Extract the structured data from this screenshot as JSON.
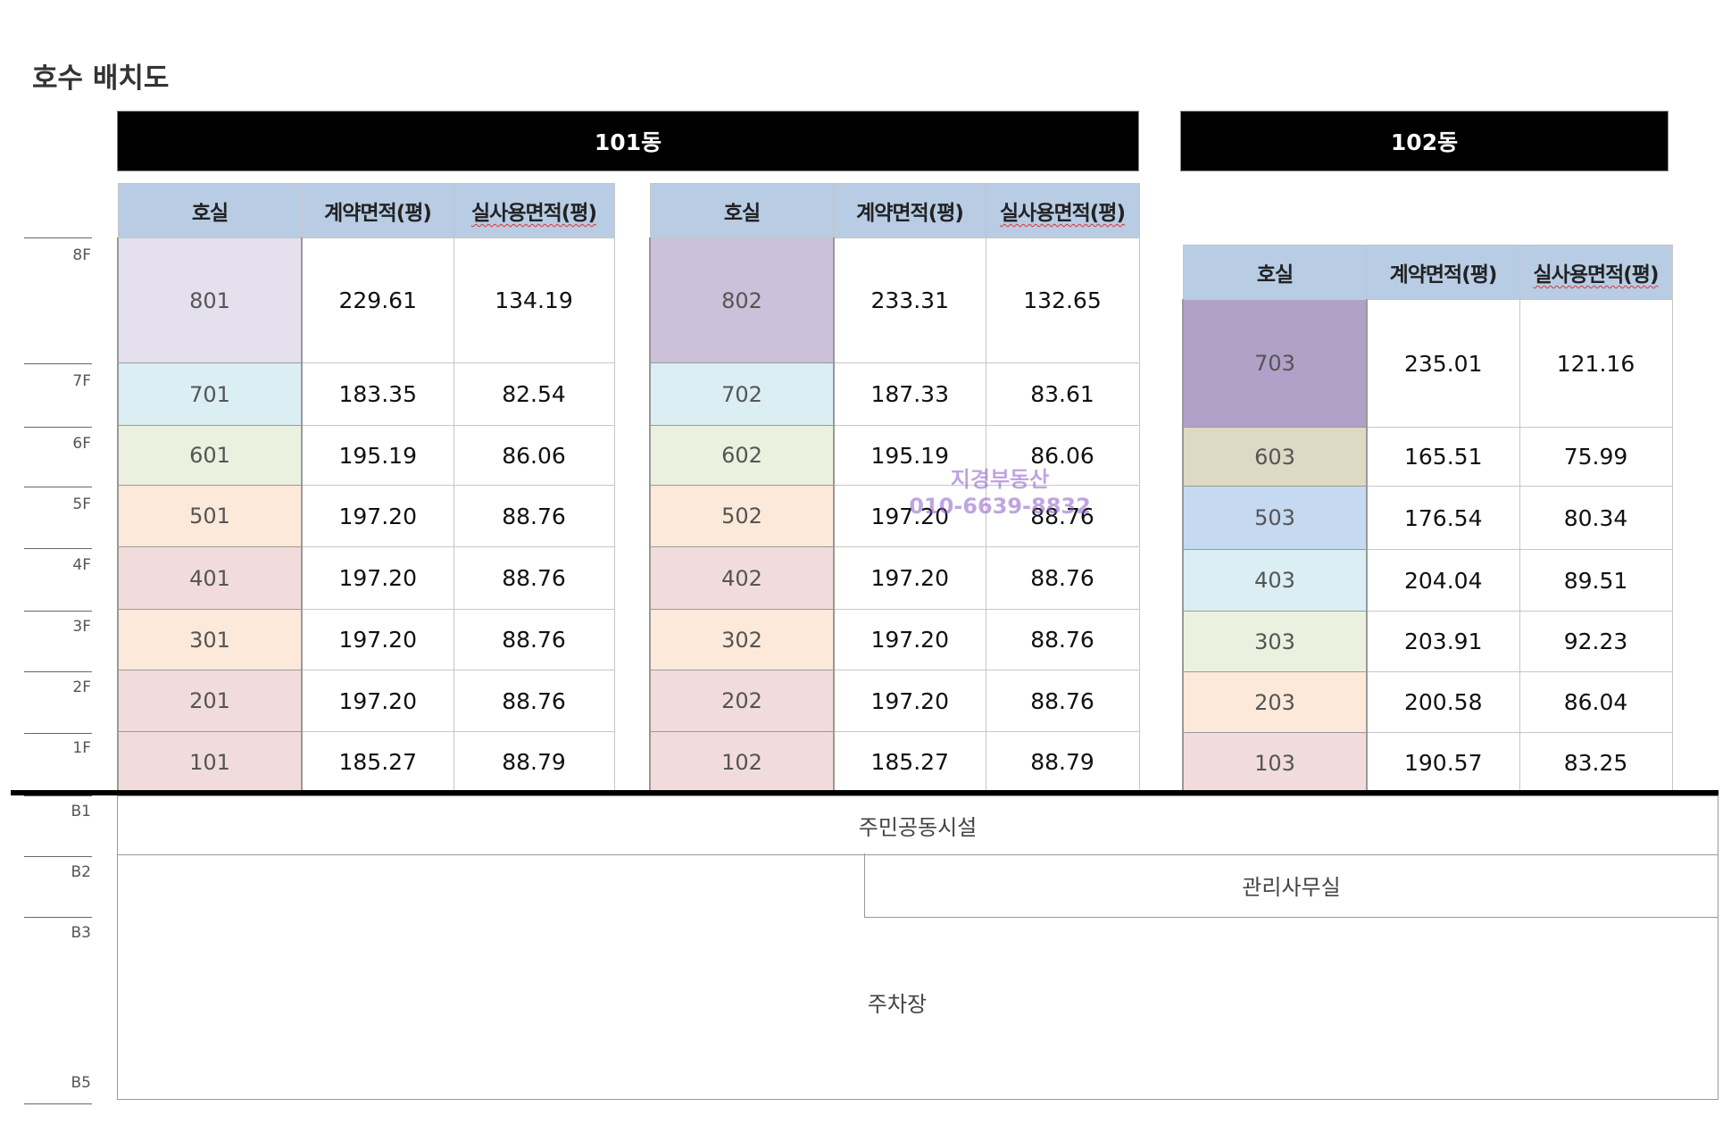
{
  "title": "호수 배치도",
  "buildings": {
    "b101": "101동",
    "b102": "102동"
  },
  "headers": {
    "unit": "호실",
    "contract_area": "계약면적(평)",
    "exclusive_area": "실사용면적(평)"
  },
  "floor_labels": [
    "8F",
    "7F",
    "6F",
    "5F",
    "4F",
    "3F",
    "2F",
    "1F",
    "B1",
    "B2",
    "B3",
    "B5"
  ],
  "colors": {
    "header_bg": "#b8cce4",
    "lavender_light": "#e4e0ee",
    "lavender_mid": "#ccc0da",
    "lavender_dark": "#b1a0c7",
    "light_blue": "#daeef3",
    "light_green": "#ebf1de",
    "peach": "#fde9d9",
    "pink": "#f2dcdb",
    "beige": "#ddd9c4",
    "blue": "#c5d9f1"
  },
  "table_101_left": {
    "rows": [
      {
        "unit": "801",
        "contract": "229.61",
        "exclusive": "134.19",
        "color": "#e4e0ee"
      },
      {
        "unit": "701",
        "contract": "183.35",
        "exclusive": "82.54",
        "color": "#daeef3"
      },
      {
        "unit": "601",
        "contract": "195.19",
        "exclusive": "86.06",
        "color": "#ebf1de"
      },
      {
        "unit": "501",
        "contract": "197.20",
        "exclusive": "88.76",
        "color": "#fde9d9"
      },
      {
        "unit": "401",
        "contract": "197.20",
        "exclusive": "88.76",
        "color": "#f2dcdb"
      },
      {
        "unit": "301",
        "contract": "197.20",
        "exclusive": "88.76",
        "color": "#fde9d9"
      },
      {
        "unit": "201",
        "contract": "197.20",
        "exclusive": "88.76",
        "color": "#f2dcdb"
      },
      {
        "unit": "101",
        "contract": "185.27",
        "exclusive": "88.79",
        "color": "#f2dcdb"
      }
    ]
  },
  "table_101_right": {
    "rows": [
      {
        "unit": "802",
        "contract": "233.31",
        "exclusive": "132.65",
        "color": "#ccc0da"
      },
      {
        "unit": "702",
        "contract": "187.33",
        "exclusive": "83.61",
        "color": "#daeef3"
      },
      {
        "unit": "602",
        "contract": "195.19",
        "exclusive": "86.06",
        "color": "#ebf1de"
      },
      {
        "unit": "502",
        "contract": "197.20",
        "exclusive": "88.76",
        "color": "#fde9d9"
      },
      {
        "unit": "402",
        "contract": "197.20",
        "exclusive": "88.76",
        "color": "#f2dcdb"
      },
      {
        "unit": "302",
        "contract": "197.20",
        "exclusive": "88.76",
        "color": "#fde9d9"
      },
      {
        "unit": "202",
        "contract": "197.20",
        "exclusive": "88.76",
        "color": "#f2dcdb"
      },
      {
        "unit": "102",
        "contract": "185.27",
        "exclusive": "88.79",
        "color": "#f2dcdb"
      }
    ]
  },
  "table_102": {
    "rows": [
      {
        "unit": "703",
        "contract": "235.01",
        "exclusive": "121.16",
        "color": "#b1a0c7"
      },
      {
        "unit": "603",
        "contract": "165.51",
        "exclusive": "75.99",
        "color": "#ddd9c4"
      },
      {
        "unit": "503",
        "contract": "176.54",
        "exclusive": "80.34",
        "color": "#c5d9f1"
      },
      {
        "unit": "403",
        "contract": "204.04",
        "exclusive": "89.51",
        "color": "#daeef3"
      },
      {
        "unit": "303",
        "contract": "203.91",
        "exclusive": "92.23",
        "color": "#ebf1de"
      },
      {
        "unit": "203",
        "contract": "200.58",
        "exclusive": "86.04",
        "color": "#fde9d9"
      },
      {
        "unit": "103",
        "contract": "190.57",
        "exclusive": "83.25",
        "color": "#f2dcdb"
      }
    ]
  },
  "basement": {
    "b1": "주민공동시설",
    "b2": "관리사무실",
    "b3": "주차장"
  },
  "watermark": {
    "name": "지경부동산",
    "phone": "010-6639-8832"
  }
}
